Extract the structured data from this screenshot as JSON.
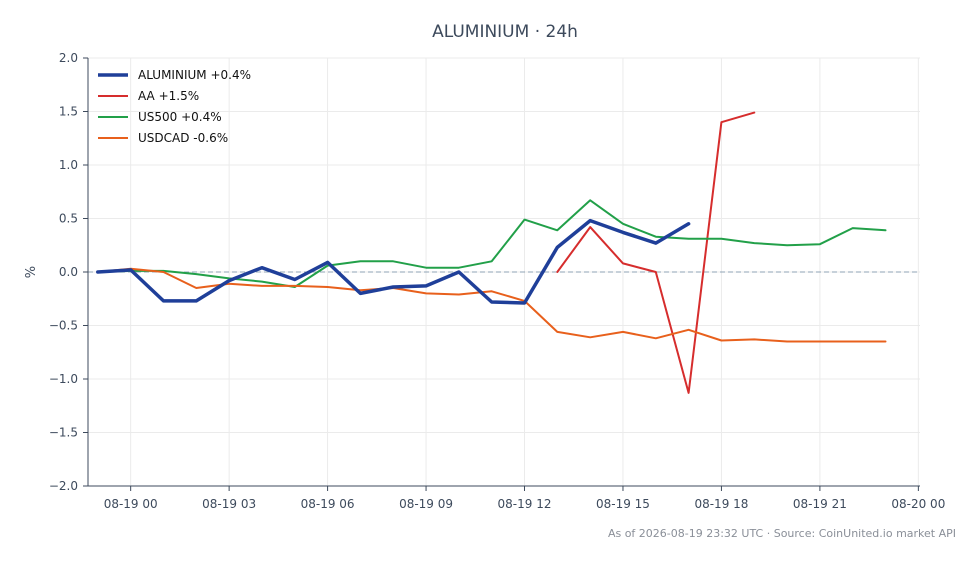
{
  "chart_data": {
    "type": "line",
    "title": "ALUMINIUM · 24h",
    "xlabel": "",
    "ylabel": "%",
    "ylim": [
      -2.0,
      2.0
    ],
    "yticks": [
      "2.0",
      "1.5",
      "1.0",
      "0.5",
      "0.0",
      "−0.5",
      "−1.0",
      "−1.5",
      "−2.0"
    ],
    "ytick_values": [
      2.0,
      1.5,
      1.0,
      0.5,
      0.0,
      -0.5,
      -1.0,
      -1.5,
      -2.0
    ],
    "xlim": [
      "08-18 23:00",
      "08-20 00:00"
    ],
    "xticks": [
      "08-19 00",
      "08-19 03",
      "08-19 06",
      "08-19 09",
      "08-19 12",
      "08-19 15",
      "08-19 18",
      "08-19 21",
      "08-20 00"
    ],
    "xtick_hours": [
      0,
      3,
      6,
      9,
      12,
      15,
      18,
      21,
      24
    ],
    "grid": true,
    "zero_line": "dashed",
    "legend": "top-left",
    "series": [
      {
        "name": "ALUMINIUM +0.4%",
        "color": "#1f3f99",
        "width": 3.5,
        "x": [
          "08-18 23:00",
          "08-19 00:00",
          "08-19 01:00",
          "08-19 02:00",
          "08-19 03:00",
          "08-19 04:00",
          "08-19 05:00",
          "08-19 06:00",
          "08-19 07:00",
          "08-19 08:00",
          "08-19 09:00",
          "08-19 10:00",
          "08-19 11:00",
          "08-19 12:00",
          "08-19 13:00",
          "08-19 14:00",
          "08-19 15:00",
          "08-19 16:00",
          "08-19 17:00"
        ],
        "values": [
          0.0,
          0.02,
          -0.27,
          -0.27,
          -0.08,
          0.04,
          -0.07,
          0.09,
          -0.2,
          -0.14,
          -0.13,
          0.0,
          -0.28,
          -0.29,
          0.23,
          0.48,
          0.37,
          0.27,
          0.45
        ]
      },
      {
        "name": "AA +1.5%",
        "color": "#d62d2d",
        "width": 2,
        "x": [
          "08-19 13:00",
          "08-19 14:00",
          "08-19 15:00",
          "08-19 16:00",
          "08-19 17:00",
          "08-19 18:00",
          "08-19 19:00"
        ],
        "values": [
          0.0,
          0.42,
          0.08,
          0.0,
          -1.13,
          1.4,
          1.49
        ]
      },
      {
        "name": "US500 +0.4%",
        "color": "#22a049",
        "width": 2,
        "x": [
          "08-18 23:00",
          "08-19 00:00",
          "08-19 01:00",
          "08-19 02:00",
          "08-19 03:00",
          "08-19 04:00",
          "08-19 05:00",
          "08-19 06:00",
          "08-19 07:00",
          "08-19 08:00",
          "08-19 09:00",
          "08-19 10:00",
          "08-19 11:00",
          "08-19 12:00",
          "08-19 13:00",
          "08-19 14:00",
          "08-19 15:00",
          "08-19 16:00",
          "08-19 17:00",
          "08-19 18:00",
          "08-19 19:00",
          "08-19 20:00",
          "08-19 21:00",
          "08-19 22:00",
          "08-19 23:00"
        ],
        "values": [
          0.0,
          0.01,
          0.01,
          -0.02,
          -0.06,
          -0.09,
          -0.14,
          0.06,
          0.1,
          0.1,
          0.04,
          0.04,
          0.1,
          0.49,
          0.39,
          0.67,
          0.45,
          0.33,
          0.31,
          0.31,
          0.27,
          0.25,
          0.26,
          0.41,
          0.39
        ]
      },
      {
        "name": "USDCAD -0.6%",
        "color": "#e8601c",
        "width": 2,
        "x": [
          "08-18 23:00",
          "08-19 00:00",
          "08-19 01:00",
          "08-19 02:00",
          "08-19 03:00",
          "08-19 04:00",
          "08-19 05:00",
          "08-19 06:00",
          "08-19 07:00",
          "08-19 08:00",
          "08-19 09:00",
          "08-19 10:00",
          "08-19 11:00",
          "08-19 12:00",
          "08-19 13:00",
          "08-19 14:00",
          "08-19 15:00",
          "08-19 16:00",
          "08-19 17:00",
          "08-19 18:00",
          "08-19 19:00",
          "08-19 20:00",
          "08-19 21:00",
          "08-19 22:00",
          "08-19 23:00"
        ],
        "values": [
          0.0,
          0.03,
          0.0,
          -0.15,
          -0.11,
          -0.13,
          -0.13,
          -0.14,
          -0.17,
          -0.15,
          -0.2,
          -0.21,
          -0.18,
          -0.27,
          -0.56,
          -0.61,
          -0.56,
          -0.62,
          -0.54,
          -0.64,
          -0.63,
          -0.65,
          -0.65,
          -0.65,
          -0.65
        ]
      }
    ]
  },
  "footer": "As of 2026-08-19 23:32 UTC · Source: CoinUnited.io market API"
}
